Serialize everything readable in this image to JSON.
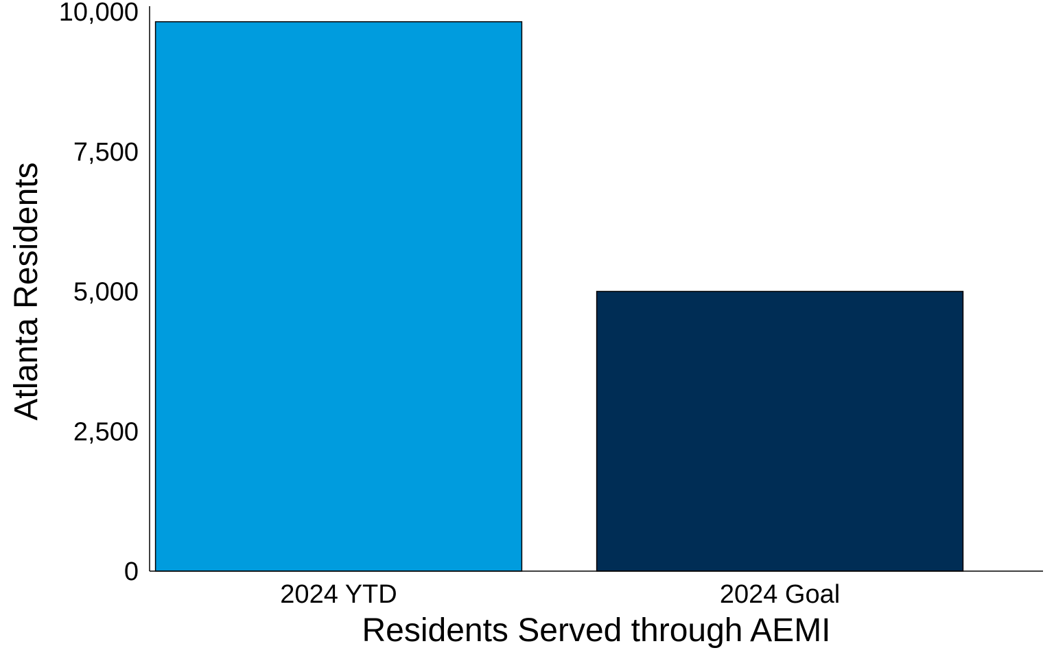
{
  "chart_data": {
    "type": "bar",
    "categories": [
      "2024 YTD",
      "2024 Goal"
    ],
    "values": [
      9820,
      5000
    ],
    "colors": [
      "#009CDE",
      "#002D55"
    ],
    "bar_outline_color": "#000000",
    "xlabel": "Residents Served through AEMI",
    "ylabel": "Atlanta Residents",
    "ylim": [
      0,
      10000
    ],
    "yticks": [
      0,
      2500,
      5000,
      7500,
      10000
    ],
    "ytick_labels": [
      "0",
      "2,500",
      "5,000",
      "7,500",
      "10,000"
    ],
    "grid": false,
    "legend": "none"
  }
}
